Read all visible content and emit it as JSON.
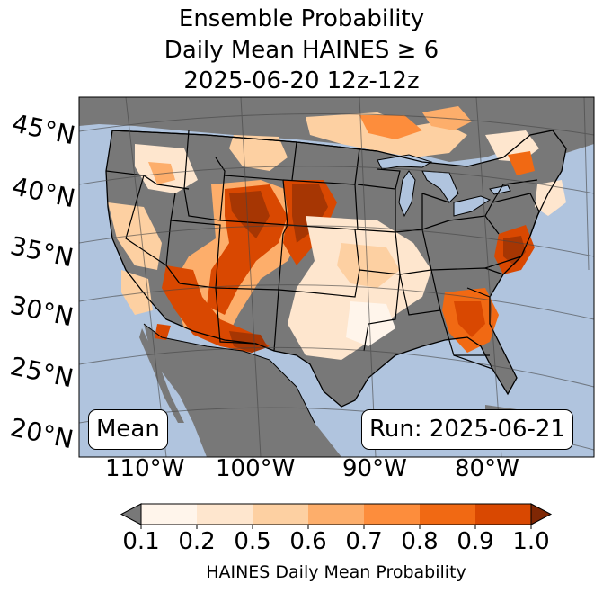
{
  "title": {
    "line1": "Ensemble Probability",
    "line2": "Daily Mean HAINES ≥ 6",
    "line3": "2025-06-20 12z-12z"
  },
  "map": {
    "lat_labels": [
      "45°N",
      "40°N",
      "35°N",
      "30°N",
      "25°N",
      "20°N"
    ],
    "lon_labels": [
      "110°W",
      "100°W",
      "90°W",
      "80°W"
    ],
    "mean_label": "Mean",
    "run_label": "Run: 2025-06-21",
    "colors": {
      "ocean": "#b0c4de",
      "land_below_threshold": "#787878",
      "lakes": "#b0c4de"
    }
  },
  "colorbar": {
    "ticks": [
      "0.1",
      "0.2",
      "0.5",
      "0.6",
      "0.7",
      "0.8",
      "0.9",
      "1.0"
    ],
    "colors": [
      "#fff5eb",
      "#fee6ce",
      "#fdd0a2",
      "#fdae6b",
      "#fd8d3c",
      "#f16913",
      "#d94801",
      "#a63603"
    ],
    "under_color": "#787878",
    "over_color": "#7f2704",
    "label": "HAINES Daily Mean Probability"
  }
}
